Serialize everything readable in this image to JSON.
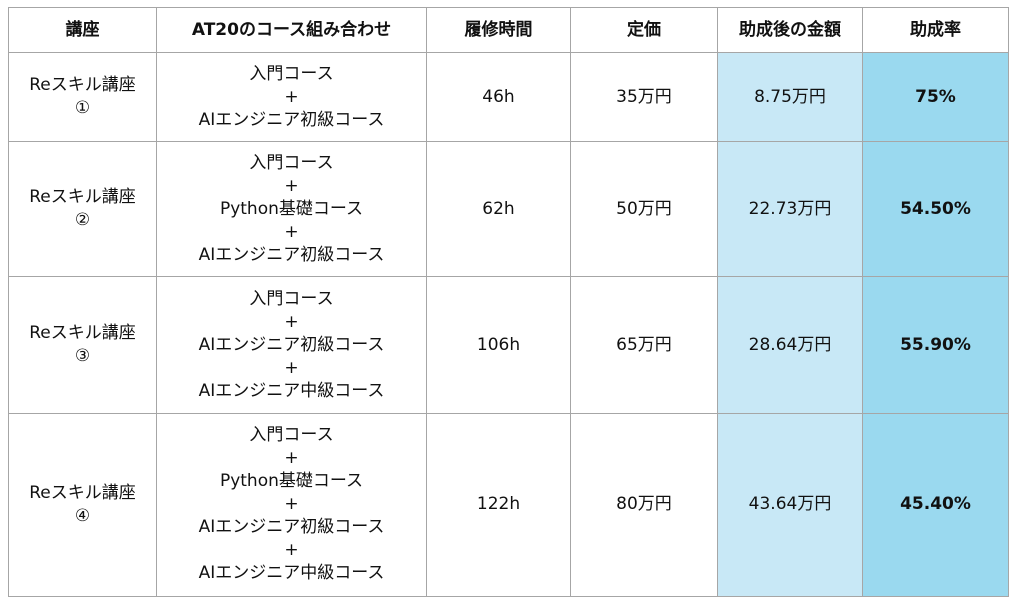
{
  "colors": {
    "subsidized_bg": "#c8e8f6",
    "rate_bg": "#9ad9ef",
    "border": "#a6a6a6"
  },
  "headers": [
    "講座",
    "AT20のコース組み合わせ",
    "履修時間",
    "定価",
    "助成後の金額",
    "助成率"
  ],
  "rows": [
    {
      "course_name": "Reスキル講座",
      "course_number": "①",
      "combo": [
        "入門コース",
        "+",
        "AIエンジニア初級コース"
      ],
      "hours": "46h",
      "price": "35万円",
      "subsidized": "8.75万円",
      "rate": "75%"
    },
    {
      "course_name": "Reスキル講座",
      "course_number": "②",
      "combo": [
        "入門コース",
        "+",
        "Python基礎コース",
        "+",
        "AIエンジニア初級コース"
      ],
      "hours": "62h",
      "price": "50万円",
      "subsidized": "22.73万円",
      "rate": "54.50%"
    },
    {
      "course_name": "Reスキル講座",
      "course_number": "③",
      "combo": [
        "入門コース",
        "+",
        "AIエンジニア初級コース",
        "+",
        "AIエンジニア中級コース"
      ],
      "hours": "106h",
      "price": "65万円",
      "subsidized": "28.64万円",
      "rate": "55.90%"
    },
    {
      "course_name": "Reスキル講座",
      "course_number": "④",
      "combo": [
        "入門コース",
        "+",
        "Python基礎コース",
        "+",
        "AIエンジニア初級コース",
        "+",
        "AIエンジニア中級コース"
      ],
      "hours": "122h",
      "price": "80万円",
      "subsidized": "43.64万円",
      "rate": "45.40%"
    }
  ]
}
